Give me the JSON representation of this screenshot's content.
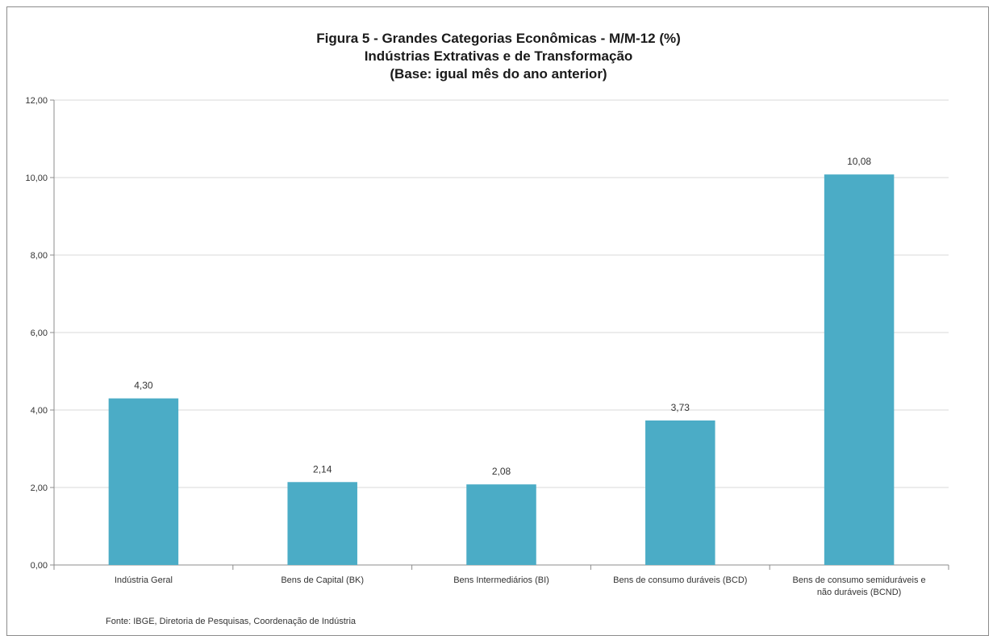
{
  "chart_data": {
    "type": "bar",
    "title_lines": [
      "Figura 5 - Grandes Categorias Econômicas - M/M-12 (%)",
      "Indústrias  Extrativas e de Transformação",
      "(Base: igual mês do ano anterior)"
    ],
    "categories": [
      [
        "Indústria Geral"
      ],
      [
        "Bens de Capital (BK)"
      ],
      [
        "Bens Intermediários (BI)"
      ],
      [
        "Bens de consumo duráveis (BCD)"
      ],
      [
        "Bens de consumo semiduráveis e",
        "não duráveis (BCND)"
      ]
    ],
    "values": [
      4.3,
      2.14,
      2.08,
      3.73,
      10.08
    ],
    "value_labels": [
      "4,30",
      "2,14",
      "2,08",
      "3,73",
      "10,08"
    ],
    "ylim": [
      0,
      12
    ],
    "yticks": [
      0,
      2,
      4,
      6,
      8,
      10,
      12
    ],
    "ytick_labels": [
      "0,00",
      "2,00",
      "4,00",
      "6,00",
      "8,00",
      "10,00",
      "12,00"
    ],
    "grid": true,
    "bar_color": "#4bacc6",
    "xlabel": "",
    "ylabel": ""
  },
  "footer": "Fonte: IBGE, Diretoria de Pesquisas, Coordenação de Indústria"
}
